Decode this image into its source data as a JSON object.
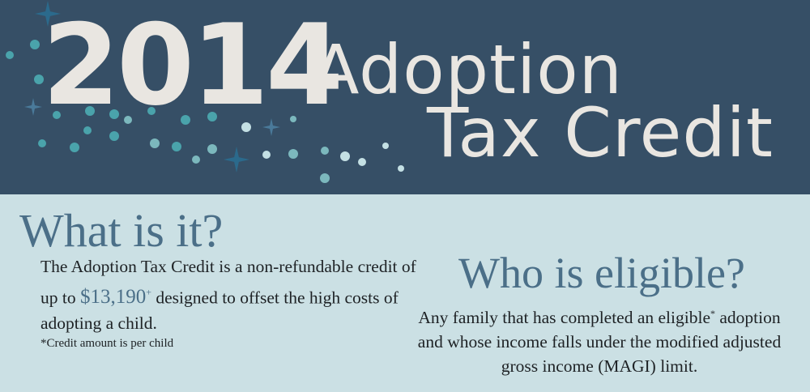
{
  "header": {
    "year": "2014",
    "title_line1": "Adoption",
    "title_line2": "Tax Credit",
    "colors": {
      "background": "#364f66",
      "title": "#e9e6e1",
      "dots_teal": "#4aa3ab",
      "dots_light": "#c4e0e4",
      "stars": "#2b6a8c"
    },
    "decoration": "sparkle-stars-and-dots"
  },
  "what": {
    "heading": "What is it?",
    "text_before": "The Adoption Tax Credit is a non-refundable credit of up to ",
    "amount": "$13,190",
    "amount_mark": "+",
    "text_after": " designed to offset the high costs of adopting a child.",
    "note": "*Credit amount is per child"
  },
  "who": {
    "heading": "Who is eligible?",
    "text_before": "Any family that has completed an eligible",
    "mark": "*",
    "text_after": " adoption and whose income falls under the modified adjusted gross income (MAGI) limit."
  },
  "colors": {
    "body_bg": "#cbe0e4",
    "heading": "#4b6f88",
    "text": "#1e2225"
  }
}
